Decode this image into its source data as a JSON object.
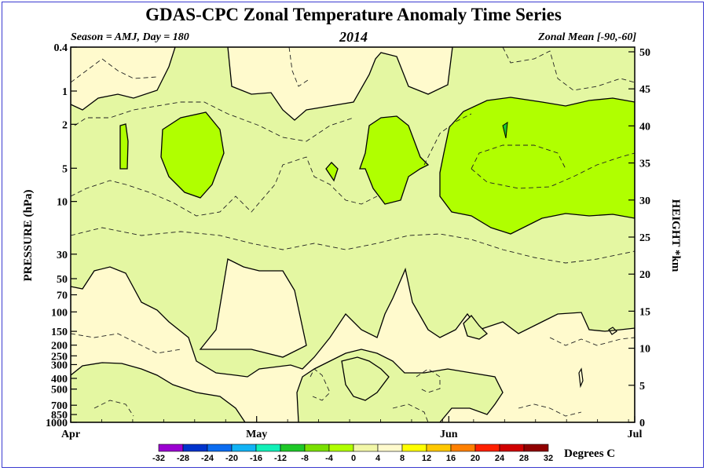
{
  "title": "GDAS-CPC Zonal Temperature Anomaly Time Series",
  "season_label": "Season = AMJ, Day = 180",
  "year": "2014",
  "zonal_mean_label": "Zonal Mean [-90,-60]",
  "colorbar": {
    "units": "Degrees C",
    "labels": [
      "-32",
      "-28",
      "-24",
      "-20",
      "-16",
      "-12",
      "-8",
      "-4",
      "0",
      "4",
      "8",
      "12",
      "16",
      "20",
      "24",
      "28",
      "32"
    ],
    "colors": [
      "#9b00d1",
      "#0033cc",
      "#0b6cf0",
      "#12b3f5",
      "#12f0b8",
      "#1ec828",
      "#7ae000",
      "#b0ff00",
      "#f2f7a8",
      "#fffacd",
      "#ffff00",
      "#ffc800",
      "#ff8000",
      "#ff2000",
      "#d00000",
      "#900000",
      "#8c6830"
    ]
  },
  "chart_data": {
    "type": "contour",
    "title": "GDAS-CPC Zonal Temperature Anomaly Time Series",
    "x_axis": {
      "label": "",
      "ticks": [
        "Apr",
        "May",
        "Jun",
        "Jul"
      ],
      "range": [
        "2014-04-01",
        "2014-07-01"
      ]
    },
    "y_axis_left": {
      "label": "PRESSURE (hPa)",
      "scale": "log",
      "range": [
        1000,
        0.4
      ],
      "ticks": [
        "0.4",
        "1",
        "2",
        "5",
        "10",
        "30",
        "50",
        "70",
        "100",
        "150",
        "200",
        "250",
        "300",
        "400",
        "500",
        "700",
        "850",
        "1000"
      ]
    },
    "y_axis_right": {
      "label": "HEIGHT *km",
      "ticks": [
        "0",
        "5",
        "10",
        "15",
        "20",
        "25",
        "30",
        "35",
        "40",
        "45",
        "50"
      ]
    },
    "contour_interval_C": 4,
    "background_level": "0 to -4 C",
    "regions": [
      {
        "level": "-8 to -4",
        "color": "#b0ff00",
        "approx_time": "mid-Apr",
        "pressure_hPa": "2-5"
      },
      {
        "level": "-8 to -4",
        "color": "#b0ff00",
        "approx_time": "late Apr",
        "pressure_hPa": "2-8"
      },
      {
        "level": "-8 to -4",
        "color": "#b0ff00",
        "approx_time": "late May",
        "pressure_hPa": "2-10"
      },
      {
        "level": "-8 to -4",
        "color": "#b0ff00",
        "approx_time": "Jun",
        "pressure_hPa": "1-25"
      },
      {
        "level": "0 to 4",
        "color": "#fffacd",
        "approx_time": "Apr-Jul",
        "pressure_hPa": "50-1000"
      },
      {
        "level": "0 to 4",
        "color": "#fffacd",
        "approx_time": "Apr, May",
        "pressure_hPa": "0.4-1"
      }
    ]
  }
}
